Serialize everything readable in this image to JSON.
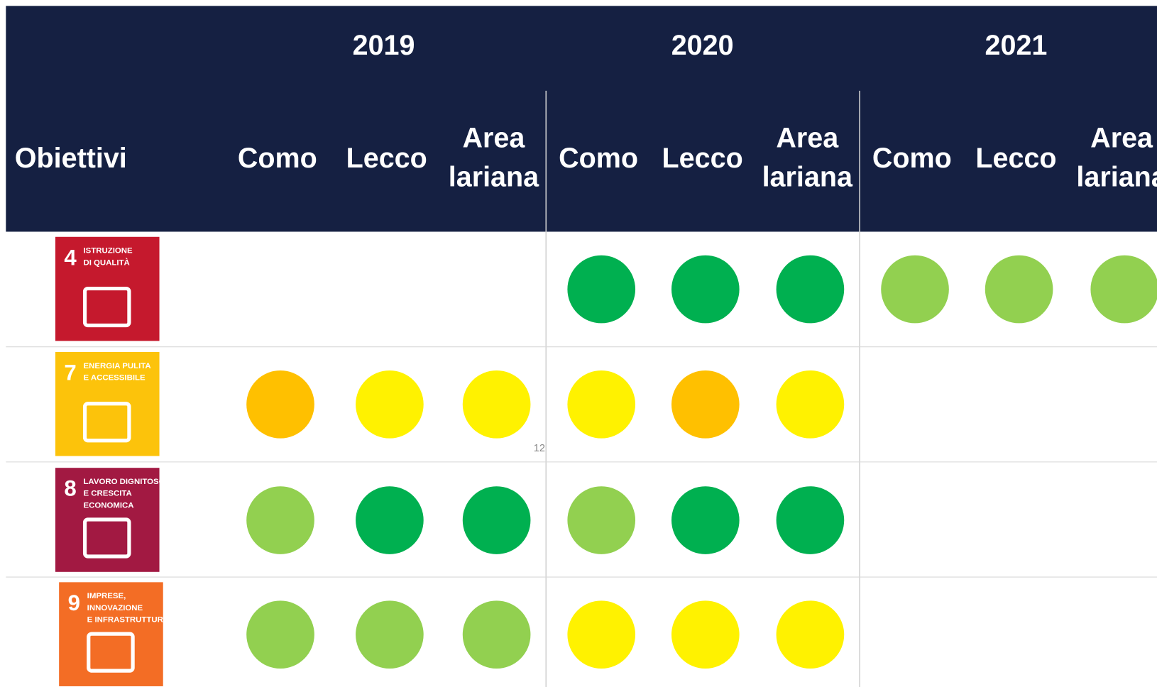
{
  "header": {
    "label": "Obiettivi",
    "years": [
      {
        "year": "2019",
        "columns": [
          "Como",
          "Lecco",
          "Area lariana"
        ]
      },
      {
        "year": "2020",
        "columns": [
          "Como",
          "Lecco",
          "Area lariana"
        ]
      },
      {
        "year": "2021",
        "columns": [
          "Como",
          "Lecco",
          "Area lariana"
        ]
      }
    ]
  },
  "rows": [
    {
      "goal": {
        "number": "4",
        "lines": [
          "ISTRUZIONE",
          "DI QUALITÀ"
        ],
        "color": "#c5192d"
      },
      "cells": [
        null,
        null,
        null,
        "#00b050",
        "#00b050",
        "#00b050",
        "#92d050",
        "#92d050",
        "#92d050"
      ]
    },
    {
      "goal": {
        "number": "7",
        "lines": [
          "ENERGIA PULITA",
          "E ACCESSIBILE"
        ],
        "color": "#fcc30b"
      },
      "cells": [
        "#ffc000",
        "#fff200",
        "#fff200",
        "#fff200",
        "#ffc000",
        "#fff200",
        null,
        null,
        null
      ]
    },
    {
      "goal": {
        "number": "8",
        "lines": [
          "LAVORO DIGNITOSO",
          "E CRESCITA",
          "ECONOMICA"
        ],
        "color": "#a21942"
      },
      "cells": [
        "#92d050",
        "#00b050",
        "#00b050",
        "#92d050",
        "#00b050",
        "#00b050",
        null,
        null,
        null
      ]
    },
    {
      "goal": {
        "number": "9",
        "lines": [
          "IMPRESE,",
          "INNOVAZIONE",
          "E INFRASTRUTTURE"
        ],
        "color": "#f36d25"
      },
      "cells": [
        "#92d050",
        "#92d050",
        "#92d050",
        "#fff200",
        "#fff200",
        "#fff200",
        null,
        null,
        null
      ]
    }
  ],
  "page_number": "12"
}
